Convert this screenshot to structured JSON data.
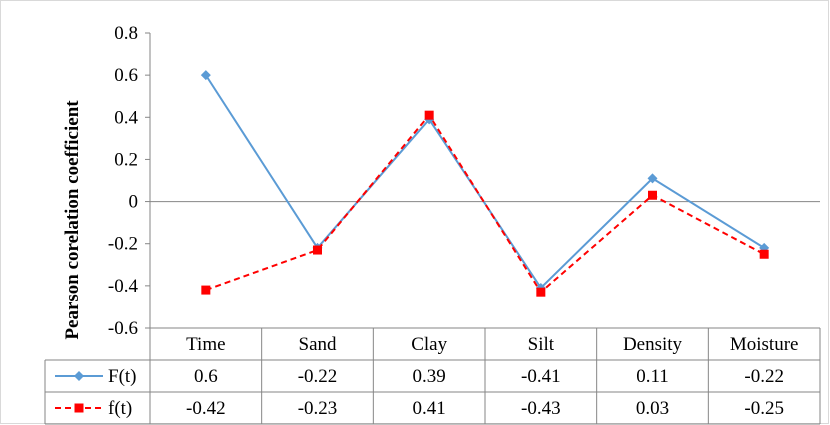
{
  "chart_data": {
    "type": "line",
    "ylabel": "Pearson corelation coefficient",
    "categories": [
      "Time",
      "Sand",
      "Clay",
      "Silt",
      "Density",
      "Moisture"
    ],
    "ylim": [
      -0.6,
      0.8
    ],
    "yticks": [
      "0.8",
      "0.6",
      "0.4",
      "0.2",
      "0",
      "-0.2",
      "-0.4",
      "-0.6"
    ],
    "grid": false,
    "legend": "data table",
    "series": [
      {
        "name": "F(t)",
        "values": [
          0.6,
          -0.22,
          0.39,
          -0.41,
          0.11,
          -0.22
        ],
        "labels": [
          "0.6",
          "-0.22",
          "0.39",
          "-0.41",
          "0.11",
          "-0.22"
        ],
        "color": "#5B9BD5",
        "marker": "diamond",
        "line": "solid"
      },
      {
        "name": "f(t)",
        "values": [
          -0.42,
          -0.23,
          0.41,
          -0.43,
          0.03,
          -0.25
        ],
        "labels": [
          "-0.42",
          "-0.23",
          "0.41",
          "-0.43",
          "0.03",
          "-0.25"
        ],
        "color": "#FF0000",
        "marker": "square",
        "line": "dashed"
      }
    ]
  }
}
